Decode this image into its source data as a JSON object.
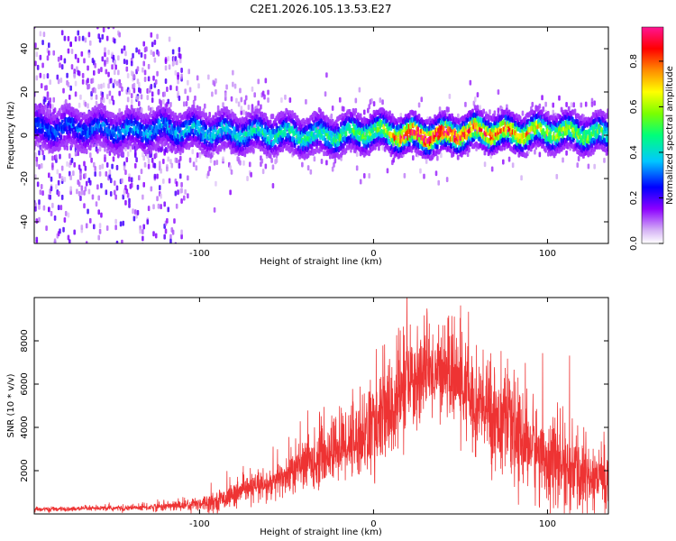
{
  "title": "C2E1.2026.105.13.53.E27",
  "chart_data": [
    {
      "type": "heatmap",
      "name": "spectrogram",
      "xlabel": "Height of straight line (km)",
      "ylabel": "Frequency (Hz)",
      "xlim": [
        -195,
        135
      ],
      "ylim": [
        -50,
        50
      ],
      "xticks": [
        -100,
        0,
        100
      ],
      "yticks": [
        -40,
        -20,
        0,
        20,
        40
      ],
      "colorbar": {
        "label": "Normalized spectral amplitude",
        "range": [
          0,
          0.95
        ],
        "ticks": [
          0.0,
          0.2,
          0.4,
          0.6,
          0.8
        ]
      },
      "ridge": {
        "x": [
          -160,
          -140,
          -120,
          -100,
          -80,
          -60,
          -40,
          -20,
          0,
          10,
          20,
          40,
          60,
          80,
          100,
          120,
          135
        ],
        "y": [
          3,
          2,
          3,
          2,
          1,
          1,
          0,
          0,
          2,
          1,
          0,
          0,
          2,
          1,
          2,
          1,
          0
        ],
        "peak_amplitude": [
          0.2,
          0.25,
          0.25,
          0.3,
          0.3,
          0.35,
          0.35,
          0.4,
          0.45,
          0.6,
          0.95,
          0.9,
          0.75,
          0.7,
          0.55,
          0.5,
          0.4
        ]
      }
    },
    {
      "type": "line",
      "name": "snr",
      "xlabel": "Height of straight line (km)",
      "ylabel": "SNR (10 * v/v)",
      "xlim": [
        -195,
        135
      ],
      "ylim": [
        0,
        10000
      ],
      "xticks": [
        -100,
        0,
        100
      ],
      "yticks": [
        2000,
        4000,
        6000,
        8000
      ],
      "color": "#ee3333",
      "envelope": {
        "x": [
          -195,
          -160,
          -130,
          -110,
          -90,
          -80,
          -70,
          -60,
          -50,
          -40,
          -30,
          -20,
          -10,
          0,
          10,
          20,
          30,
          40,
          50,
          60,
          70,
          80,
          90,
          100,
          110,
          120,
          130,
          135
        ],
        "y": [
          200,
          250,
          300,
          400,
          600,
          900,
          1200,
          1300,
          1800,
          2300,
          2600,
          3100,
          3500,
          4000,
          4800,
          6000,
          6500,
          6700,
          6000,
          5000,
          4500,
          3800,
          3200,
          2600,
          2100,
          1800,
          1700,
          1600
        ],
        "spread": [
          100,
          100,
          150,
          250,
          400,
          500,
          600,
          700,
          900,
          1100,
          1200,
          1500,
          1700,
          2000,
          2400,
          2200,
          1800,
          1800,
          2000,
          2200,
          2200,
          2100,
          2000,
          1900,
          1800,
          1700,
          1500,
          1500
        ]
      }
    }
  ]
}
